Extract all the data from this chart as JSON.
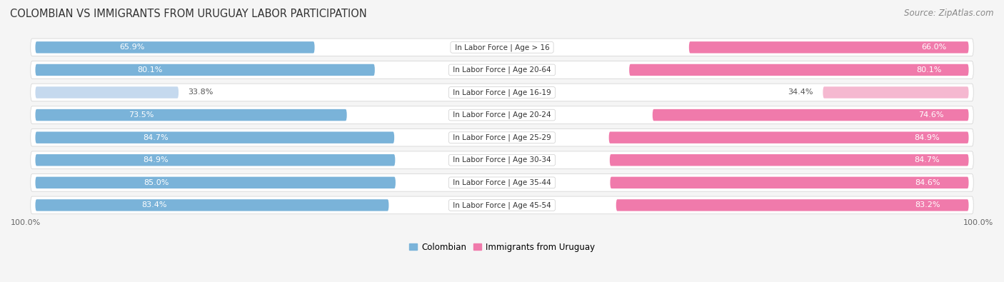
{
  "title": "COLOMBIAN VS IMMIGRANTS FROM URUGUAY LABOR PARTICIPATION",
  "source": "Source: ZipAtlas.com",
  "categories": [
    "In Labor Force | Age > 16",
    "In Labor Force | Age 20-64",
    "In Labor Force | Age 16-19",
    "In Labor Force | Age 20-24",
    "In Labor Force | Age 25-29",
    "In Labor Force | Age 30-34",
    "In Labor Force | Age 35-44",
    "In Labor Force | Age 45-54"
  ],
  "colombian_values": [
    65.9,
    80.1,
    33.8,
    73.5,
    84.7,
    84.9,
    85.0,
    83.4
  ],
  "uruguay_values": [
    66.0,
    80.1,
    34.4,
    74.6,
    84.9,
    84.7,
    84.6,
    83.2
  ],
  "colombian_color": "#7ab3d9",
  "colombian_color_light": "#c5d9ee",
  "uruguay_color": "#f07aab",
  "uruguay_color_light": "#f5b8d0",
  "row_bg_color": "#efefef",
  "track_bg_color": "#e8e8e8",
  "label_color_white": "#ffffff",
  "label_color_dark": "#555555",
  "max_value": 100.0,
  "legend_labels": [
    "Colombian",
    "Immigrants from Uruguay"
  ],
  "title_fontsize": 10.5,
  "source_fontsize": 8.5,
  "bar_label_fontsize": 8,
  "category_fontsize": 7.5,
  "legend_fontsize": 8.5,
  "axis_label_fontsize": 8,
  "fig_bg": "#f5f5f5"
}
